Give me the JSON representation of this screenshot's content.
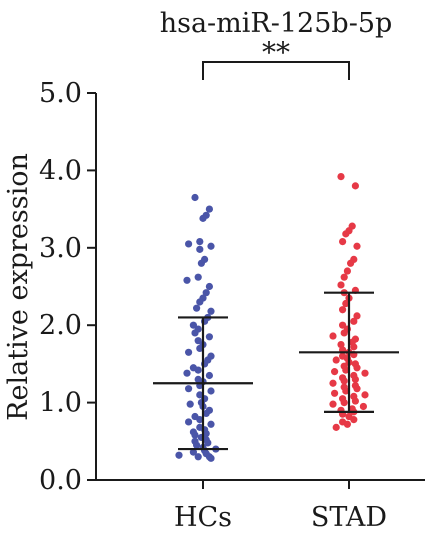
{
  "chart_data": {
    "type": "scatter",
    "title": "hsa-miR-125b-5p",
    "ylabel": "Relative expression",
    "xlabel": "",
    "ylim": [
      0,
      5
    ],
    "yticks": [
      "0.0",
      "1.0",
      "2.0",
      "3.0",
      "4.0",
      "5.0"
    ],
    "yticks_values": [
      0,
      1,
      2,
      3,
      4,
      5
    ],
    "categories": [
      "HCs",
      "STAD"
    ],
    "significance": "**",
    "series": [
      {
        "category": "HCs",
        "color": "#4a55a8",
        "mean": 1.25,
        "sd_upper": 2.1,
        "sd_lower": 0.4,
        "values": [
          3.65,
          3.5,
          3.42,
          3.38,
          3.08,
          3.05,
          3.02,
          2.98,
          2.85,
          2.8,
          2.62,
          2.58,
          2.5,
          2.42,
          2.35,
          2.3,
          2.22,
          2.18,
          2.1,
          2.05,
          2.0,
          1.95,
          1.9,
          1.85,
          1.8,
          1.75,
          1.7,
          1.65,
          1.6,
          1.55,
          1.5,
          1.45,
          1.42,
          1.38,
          1.35,
          1.3,
          1.27,
          1.22,
          1.18,
          1.15,
          1.1,
          1.05,
          1.0,
          0.98,
          0.95,
          0.9,
          0.86,
          0.82,
          0.78,
          0.75,
          0.72,
          0.68,
          0.65,
          0.62,
          0.6,
          0.58,
          0.55,
          0.52,
          0.5,
          0.48,
          0.45,
          0.42,
          0.4,
          0.38,
          0.36,
          0.34,
          0.32,
          0.3,
          0.3,
          0.28
        ]
      },
      {
        "category": "STAD",
        "color": "#e63946",
        "mean": 1.65,
        "sd_upper": 2.42,
        "sd_lower": 0.88,
        "values": [
          3.92,
          3.8,
          3.28,
          3.22,
          3.18,
          3.08,
          3.02,
          2.85,
          2.8,
          2.7,
          2.62,
          2.52,
          2.45,
          2.42,
          2.35,
          2.28,
          2.2,
          2.12,
          2.05,
          2.0,
          1.95,
          1.9,
          1.86,
          1.82,
          1.78,
          1.75,
          1.72,
          1.68,
          1.65,
          1.62,
          1.6,
          1.57,
          1.55,
          1.52,
          1.5,
          1.47,
          1.45,
          1.42,
          1.4,
          1.38,
          1.35,
          1.32,
          1.3,
          1.28,
          1.25,
          1.22,
          1.2,
          1.18,
          1.15,
          1.12,
          1.1,
          1.08,
          1.05,
          1.02,
          1.0,
          0.98,
          0.95,
          0.92,
          0.9,
          0.88,
          0.85,
          0.82,
          0.78,
          0.75,
          0.72,
          0.68
        ]
      }
    ]
  }
}
